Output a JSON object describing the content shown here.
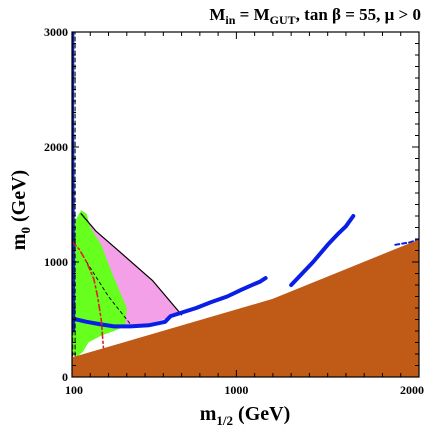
{
  "chart_data": {
    "type": "area",
    "title_parts": {
      "m_in": "M",
      "m_in_sub": "in",
      "eq": " = M",
      "gut_sub": "GUT",
      "rest": ", tan β = 55,  μ > 0"
    },
    "xlabel_main": "m",
    "xlabel_sub": "1/2",
    "xlabel_unit": " (GeV)",
    "ylabel_main": "m",
    "ylabel_sub": "0",
    "ylabel_unit": " (GeV)",
    "xlim": [
      100,
      2000
    ],
    "ylim": [
      0,
      3000
    ],
    "x_ticks": [
      {
        "value": 100,
        "label": "100"
      },
      {
        "value": 1000,
        "label": "1000"
      },
      {
        "value": 2000,
        "label": "2000"
      }
    ],
    "y_ticks": [
      {
        "value": 0,
        "label": "0"
      },
      {
        "value": 1000,
        "label": "1000"
      },
      {
        "value": 2000,
        "label": "2000"
      },
      {
        "value": 3000,
        "label": "3000"
      }
    ],
    "colors": {
      "brown_region": "#c05a17",
      "green_region": "#66ff1e",
      "pink_region": "#f4a0e8",
      "blue_strip": "#0a1ee6",
      "red_dashdot": "#e02020",
      "black_line": "#000000"
    },
    "regions": {
      "brown": [
        [
          100,
          170
        ],
        [
          1200,
          680
        ],
        [
          1990,
          1190
        ],
        [
          2000,
          1190
        ],
        [
          2000,
          0
        ],
        [
          100,
          0
        ]
      ],
      "green_main": [
        [
          100,
          1310
        ],
        [
          150,
          1450
        ],
        [
          180,
          1420
        ],
        [
          200,
          1300
        ],
        [
          260,
          1150
        ],
        [
          320,
          900
        ],
        [
          400,
          600
        ],
        [
          390,
          440
        ],
        [
          330,
          400
        ],
        [
          260,
          360
        ],
        [
          190,
          300
        ],
        [
          160,
          220
        ],
        [
          130,
          180
        ],
        [
          100,
          200
        ],
        [
          100,
          1310
        ]
      ],
      "green_top": [
        [
          100,
          2430
        ],
        [
          103,
          2700
        ],
        [
          107,
          2950
        ],
        [
          112,
          3000
        ],
        [
          105,
          3000
        ],
        [
          100,
          2900
        ]
      ],
      "pink": [
        [
          150,
          1420
        ],
        [
          230,
          1270
        ],
        [
          360,
          1090
        ],
        [
          540,
          840
        ],
        [
          700,
          540
        ],
        [
          600,
          500
        ],
        [
          480,
          450
        ],
        [
          360,
          460
        ],
        [
          300,
          560
        ],
        [
          260,
          800
        ],
        [
          230,
          1050
        ],
        [
          200,
          1300
        ]
      ],
      "blue_main": [
        [
          100,
          510
        ],
        [
          180,
          480
        ],
        [
          250,
          460
        ],
        [
          330,
          440
        ],
        [
          420,
          440
        ],
        [
          520,
          450
        ],
        [
          610,
          480
        ],
        [
          640,
          530
        ],
        [
          700,
          560
        ],
        [
          780,
          600
        ],
        [
          860,
          650
        ],
        [
          950,
          700
        ],
        [
          1030,
          760
        ],
        [
          1100,
          810
        ],
        [
          1130,
          830
        ],
        [
          1160,
          860
        ]
      ],
      "blue_upper": [
        [
          1300,
          800
        ],
        [
          1420,
          1000
        ],
        [
          1500,
          1150
        ],
        [
          1560,
          1250
        ],
        [
          1600,
          1310
        ],
        [
          1640,
          1400
        ]
      ],
      "blue_left_vertical": [
        [
          110,
          400
        ],
        [
          110,
          900
        ],
        [
          107,
          1600
        ],
        [
          105,
          2300
        ],
        [
          106,
          3000
        ]
      ],
      "blue_right_segment": [
        [
          1870,
          1150
        ],
        [
          1950,
          1170
        ],
        [
          2000,
          1200
        ]
      ]
    },
    "lines": {
      "black_boundary": [
        [
          150,
          1420
        ],
        [
          230,
          1270
        ],
        [
          360,
          1090
        ],
        [
          540,
          840
        ],
        [
          700,
          540
        ]
      ],
      "red_dashdot_curve": [
        [
          100,
          1180
        ],
        [
          140,
          1110
        ],
        [
          180,
          1000
        ],
        [
          220,
          850
        ],
        [
          240,
          700
        ],
        [
          260,
          500
        ],
        [
          270,
          300
        ],
        [
          275,
          200
        ]
      ],
      "black_dashed_vertical_1": [
        [
          104,
          0
        ],
        [
          104,
          3000
        ]
      ],
      "black_dashed_vertical_2": [
        [
          117,
          0
        ],
        [
          117,
          3000
        ]
      ],
      "black_dashed_diagonal": [
        [
          180,
          1000
        ],
        [
          300,
          700
        ],
        [
          420,
          460
        ]
      ]
    }
  }
}
